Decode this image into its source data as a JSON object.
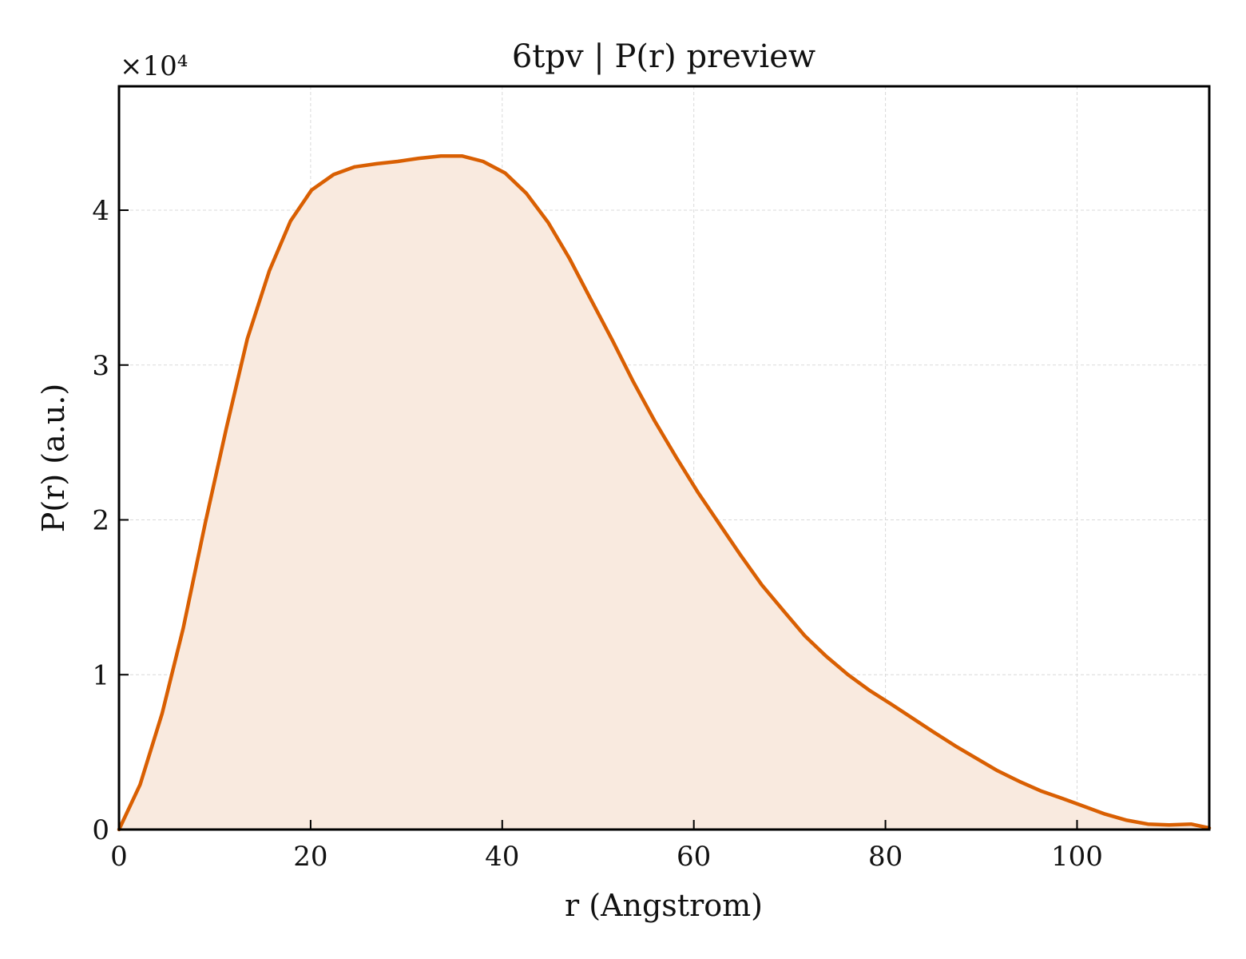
{
  "chart_data": {
    "type": "area",
    "title": "6tpv | P(r) preview",
    "xlabel": "r (Angstrom)",
    "ylabel": "P(r) (a.u.)",
    "y_scale_label": "×10⁴",
    "xlim": [
      0,
      113.8
    ],
    "ylim": [
      0,
      48000
    ],
    "x_ticks": [
      0,
      20,
      40,
      60,
      80,
      100
    ],
    "x_tick_labels": [
      "0",
      "20",
      "40",
      "60",
      "80",
      "100"
    ],
    "y_ticks": [
      0,
      10000,
      20000,
      30000,
      40000
    ],
    "y_tick_labels": [
      "0",
      "1",
      "2",
      "3",
      "4"
    ],
    "grid": true,
    "line_color": "#d95f02",
    "fill_color": "#f9eadf",
    "series": [
      {
        "x": [
          0,
          2.2,
          4.5,
          6.7,
          9.0,
          11.2,
          13.4,
          15.7,
          17.9,
          20.1,
          22.4,
          24.6,
          26.9,
          29.1,
          31.3,
          33.6,
          35.8,
          38.0,
          40.3,
          42.5,
          44.8,
          47.0,
          49.2,
          51.5,
          53.7,
          55.9,
          58.2,
          60.4,
          62.7,
          64.9,
          67.1,
          69.4,
          71.6,
          73.8,
          76.1,
          78.3,
          80.6,
          82.8,
          85.0,
          87.3,
          89.5,
          91.7,
          94.0,
          96.2,
          98.5,
          100.7,
          102.9,
          105.2,
          107.4,
          109.6,
          111.9,
          113.8
        ],
        "y": [
          0,
          2900,
          7500,
          13000,
          19800,
          25900,
          31700,
          36100,
          39300,
          41300,
          42300,
          42800,
          43000,
          43150,
          43350,
          43500,
          43500,
          43150,
          42400,
          41100,
          39200,
          36900,
          34300,
          31600,
          28900,
          26400,
          24000,
          21800,
          19700,
          17700,
          15800,
          14100,
          12500,
          11200,
          10000,
          9000,
          8100,
          7200,
          6300,
          5400,
          4600,
          3800,
          3100,
          2500,
          2000,
          1500,
          1000,
          600,
          350,
          300,
          350,
          100
        ]
      }
    ]
  }
}
